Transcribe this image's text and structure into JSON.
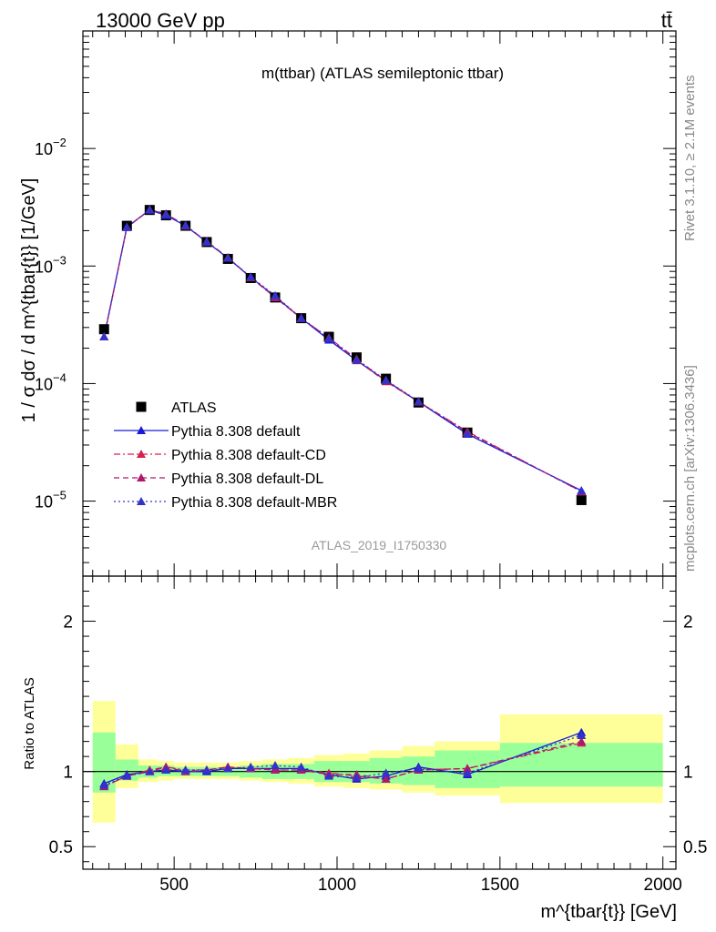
{
  "header": {
    "energy_label": "13000 GeV pp",
    "process_label": "tt̄"
  },
  "side_labels": {
    "rivet": "Rivet 3.1.10, ≥ 2.1M events",
    "mcplots": "mcplots.cern.ch [arXiv:1306.3436]"
  },
  "analysis_id": "ATLAS_2019_I1750330",
  "chart_data": [
    {
      "type": "scatter",
      "title": "m(ttbar) (ATLAS semileptonic ttbar)",
      "xlabel": "m^{tbar{t}} [GeV]",
      "ylabel": "1 / σ dσ / d m^{tbar{t}} [1/GeV]",
      "yscale": "log",
      "ylim": [
        2.3e-06,
        0.1
      ],
      "xlim": [
        220,
        2040
      ],
      "y_tick_labels": [
        "10^-5",
        "10^-4",
        "10^-3",
        "10^-2"
      ],
      "x_tick_labels": [
        "500",
        "1000",
        "1500",
        "2000"
      ],
      "legend_position": "bottom-left",
      "x": [
        285,
        355,
        425,
        475,
        535,
        600,
        665,
        735,
        810,
        890,
        975,
        1060,
        1150,
        1250,
        1400,
        1750
      ],
      "series": [
        {
          "name": "ATLAS",
          "style": "marker-square",
          "color": "#000000",
          "values": [
            0.00029,
            0.0022,
            0.003,
            0.0027,
            0.0022,
            0.0016,
            0.00115,
            0.00079,
            0.00054,
            0.00036,
            0.00025,
            0.000167,
            0.00011,
            6.9e-05,
            3.83e-05,
            1.02e-05
          ]
        },
        {
          "name": "Pythia 8.308 default",
          "style": "solid",
          "color": "#1a1ad6",
          "values": [
            0.00025,
            0.00215,
            0.003,
            0.0027,
            0.0022,
            0.0016,
            0.00117,
            0.0008,
            0.00055,
            0.00036,
            0.000235,
            0.000157,
            0.000106,
            7e-05,
            3.72e-05,
            1.23e-05
          ]
        },
        {
          "name": "Pythia 8.308 default-CD",
          "style": "dashdot",
          "color": "#d6204f",
          "values": [
            0.00025,
            0.00213,
            0.00302,
            0.00277,
            0.00221,
            0.00161,
            0.00118,
            0.0008,
            0.00054,
            0.00036,
            0.000245,
            0.000162,
            0.000105,
            7e-05,
            3.91e-05,
            1.2e-05
          ]
        },
        {
          "name": "Pythia 8.308 default-DL",
          "style": "dashed",
          "color": "#b0186e",
          "values": [
            0.00025,
            0.00213,
            0.003,
            0.00278,
            0.0022,
            0.00162,
            0.00118,
            0.0008,
            0.00054,
            0.00036,
            0.000243,
            0.000158,
            0.000104,
            7e-05,
            3.86e-05,
            1.21e-05
          ]
        },
        {
          "name": "Pythia 8.308 default-MBR",
          "style": "dotted",
          "color": "#3333cc",
          "values": [
            0.00025,
            0.00214,
            0.00301,
            0.00275,
            0.00222,
            0.00161,
            0.00117,
            0.00081,
            0.00056,
            0.00036,
            0.000242,
            0.00016,
            0.000107,
            7.05e-05,
            3.76e-05,
            1.22e-05
          ]
        }
      ]
    },
    {
      "type": "line",
      "ylabel": "Ratio to ATLAS",
      "ylim": [
        0.35,
        2.3
      ],
      "y_tick_labels": [
        "0.5",
        "1",
        "2"
      ],
      "x": [
        285,
        355,
        425,
        475,
        535,
        600,
        665,
        735,
        810,
        890,
        975,
        1060,
        1150,
        1250,
        1400,
        1750
      ],
      "bins": [
        [
          250,
          320
        ],
        [
          320,
          390
        ],
        [
          390,
          450
        ],
        [
          450,
          500
        ],
        [
          500,
          565
        ],
        [
          565,
          630
        ],
        [
          630,
          700
        ],
        [
          700,
          770
        ],
        [
          770,
          850
        ],
        [
          850,
          930
        ],
        [
          930,
          1020
        ],
        [
          1020,
          1100
        ],
        [
          1100,
          1200
        ],
        [
          1200,
          1300
        ],
        [
          1300,
          1500
        ],
        [
          1500,
          2000
        ]
      ],
      "band_inner": [
        [
          0.86,
          1.26
        ],
        [
          0.94,
          1.08
        ],
        [
          0.96,
          1.04
        ],
        [
          0.97,
          1.04
        ],
        [
          0.97,
          1.03
        ],
        [
          0.97,
          1.03
        ],
        [
          0.97,
          1.03
        ],
        [
          0.96,
          1.04
        ],
        [
          0.95,
          1.05
        ],
        [
          0.95,
          1.05
        ],
        [
          0.93,
          1.07
        ],
        [
          0.93,
          1.07
        ],
        [
          0.92,
          1.09
        ],
        [
          0.91,
          1.1
        ],
        [
          0.89,
          1.14
        ],
        [
          0.9,
          1.19
        ]
      ],
      "band_outer": [
        [
          0.66,
          1.47
        ],
        [
          0.89,
          1.18
        ],
        [
          0.93,
          1.08
        ],
        [
          0.94,
          1.07
        ],
        [
          0.95,
          1.06
        ],
        [
          0.95,
          1.06
        ],
        [
          0.95,
          1.06
        ],
        [
          0.94,
          1.07
        ],
        [
          0.93,
          1.08
        ],
        [
          0.92,
          1.09
        ],
        [
          0.9,
          1.11
        ],
        [
          0.89,
          1.12
        ],
        [
          0.88,
          1.14
        ],
        [
          0.86,
          1.17
        ],
        [
          0.84,
          1.2
        ],
        [
          0.79,
          1.38
        ]
      ],
      "series": [
        {
          "name": "Pythia 8.308 default",
          "color": "#1a1ad6",
          "values": [
            0.92,
            0.98,
            1.0,
            1.01,
            1.0,
            1.0,
            1.02,
            1.02,
            1.02,
            1.02,
            0.98,
            0.95,
            0.97,
            1.03,
            0.98,
            1.26
          ]
        },
        {
          "name": "Pythia 8.308 default-CD",
          "color": "#d6204f",
          "values": [
            0.9,
            0.97,
            1.01,
            1.03,
            1.01,
            1.01,
            1.03,
            1.02,
            1.01,
            1.01,
            0.99,
            0.97,
            0.95,
            1.01,
            1.02,
            1.19
          ]
        },
        {
          "name": "Pythia 8.308 default-DL",
          "color": "#b0186e",
          "values": [
            0.9,
            0.97,
            1.0,
            1.03,
            1.0,
            1.01,
            1.03,
            1.02,
            1.01,
            1.01,
            0.98,
            0.98,
            0.95,
            1.01,
            1.02,
            1.2
          ]
        },
        {
          "name": "Pythia 8.308 default-MBR",
          "color": "#3333cc",
          "values": [
            0.91,
            0.97,
            1.0,
            1.01,
            1.01,
            1.01,
            1.02,
            1.03,
            1.04,
            1.03,
            0.97,
            0.96,
            0.99,
            1.02,
            0.99,
            1.24
          ]
        }
      ]
    }
  ]
}
